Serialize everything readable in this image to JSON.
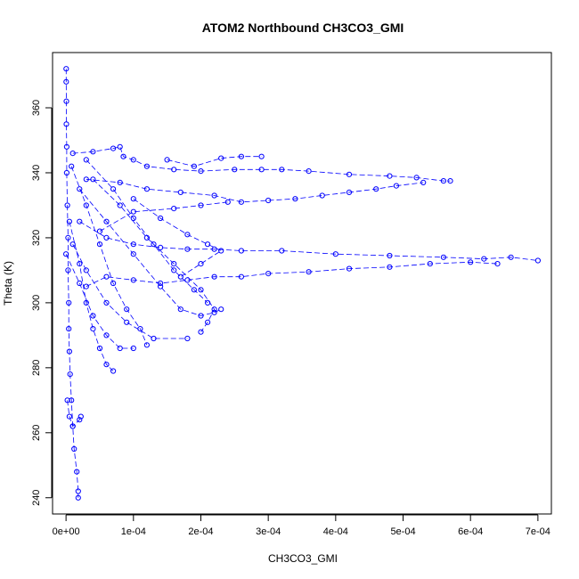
{
  "chart_data": {
    "type": "scatter",
    "title": "ATOM2 Northbound CH3CO3_GMI",
    "xlabel": "CH3CO3_GMI",
    "ylabel": "Theta (K)",
    "xlim": [
      -2e-05,
      0.00072
    ],
    "ylim": [
      235,
      377
    ],
    "xticks": [
      0,
      0.0001,
      0.0002,
      0.0003,
      0.0004,
      0.0005,
      0.0006,
      0.0007
    ],
    "xtick_labels": [
      "0e+00",
      "1e-04",
      "2e-04",
      "3e-04",
      "4e-04",
      "5e-04",
      "6e-04",
      "7e-04"
    ],
    "yticks": [
      240,
      260,
      280,
      300,
      320,
      340,
      360
    ],
    "ytick_labels": [
      "240",
      "260",
      "280",
      "300",
      "320",
      "340",
      "360"
    ],
    "grid": false,
    "marker": "open-circle",
    "connected": true,
    "color": "#0000ff",
    "series": [
      {
        "points": [
          [
            2e-07,
            372
          ],
          [
            2e-07,
            368
          ],
          [
            5e-07,
            362
          ],
          [
            5e-07,
            355
          ],
          [
            1e-06,
            348
          ],
          [
            1e-06,
            340
          ],
          [
            2e-06,
            330
          ],
          [
            3e-06,
            320
          ],
          [
            3e-06,
            310
          ],
          [
            4e-06,
            300
          ],
          [
            4e-06,
            292
          ],
          [
            5e-06,
            285
          ],
          [
            6e-06,
            278
          ],
          [
            8e-06,
            270
          ],
          [
            1e-05,
            262
          ],
          [
            1.2e-05,
            255
          ],
          [
            1.6e-05,
            248
          ],
          [
            1.8e-05,
            242
          ],
          [
            1.8e-05,
            240
          ]
        ]
      },
      {
        "points": [
          [
            1e-05,
            346
          ],
          [
            4e-05,
            346.5
          ],
          [
            7e-05,
            347.5
          ],
          [
            8e-05,
            348
          ],
          [
            8.5e-05,
            345
          ],
          [
            0.0001,
            344
          ],
          [
            0.00012,
            342
          ],
          [
            0.00016,
            341
          ],
          [
            0.0002,
            340.5
          ],
          [
            0.00025,
            341
          ],
          [
            0.00029,
            341
          ],
          [
            0.00032,
            341
          ],
          [
            0.00036,
            340.5
          ],
          [
            0.00042,
            339.5
          ],
          [
            0.00048,
            339
          ],
          [
            0.00052,
            338.5
          ],
          [
            0.00056,
            337.5
          ],
          [
            0.00057,
            337.5
          ]
        ]
      },
      {
        "points": [
          [
            3e-05,
            338
          ],
          [
            8e-05,
            337
          ],
          [
            0.00012,
            335
          ],
          [
            0.00017,
            334
          ],
          [
            0.00022,
            333
          ],
          [
            0.00026,
            331
          ],
          [
            0.0003,
            331.5
          ],
          [
            0.00034,
            332
          ],
          [
            0.00038,
            333
          ],
          [
            0.00042,
            334
          ],
          [
            0.00046,
            335
          ],
          [
            0.00049,
            336
          ],
          [
            0.00053,
            337
          ]
        ]
      },
      {
        "points": [
          [
            2e-05,
            325
          ],
          [
            6e-05,
            320
          ],
          [
            0.0001,
            318
          ],
          [
            0.00014,
            317
          ],
          [
            0.00018,
            316.5
          ],
          [
            0.00022,
            316.5
          ],
          [
            0.00026,
            316
          ],
          [
            0.00032,
            316
          ],
          [
            0.0004,
            315
          ],
          [
            0.00048,
            314.5
          ],
          [
            0.00056,
            314
          ],
          [
            0.00062,
            313.5
          ],
          [
            0.00066,
            314
          ],
          [
            0.0007,
            313
          ]
        ]
      },
      {
        "points": [
          [
            3e-05,
            305
          ],
          [
            6e-05,
            308
          ],
          [
            0.0001,
            307
          ],
          [
            0.00014,
            306
          ],
          [
            0.00018,
            307
          ],
          [
            0.00022,
            308
          ],
          [
            0.00026,
            308
          ],
          [
            0.0003,
            309
          ],
          [
            0.00036,
            309.5
          ],
          [
            0.00042,
            310.5
          ],
          [
            0.00048,
            311
          ],
          [
            0.00054,
            312
          ],
          [
            0.0006,
            312.5
          ],
          [
            0.00064,
            312
          ]
        ]
      },
      {
        "points": [
          [
            8e-06,
            342
          ],
          [
            3e-05,
            330
          ],
          [
            5e-05,
            318
          ],
          [
            7e-05,
            306
          ],
          [
            9e-05,
            298
          ],
          [
            0.00011,
            292
          ],
          [
            0.00012,
            287
          ]
        ]
      },
      {
        "points": [
          [
            5e-06,
            325
          ],
          [
            2e-05,
            312
          ],
          [
            3e-05,
            300
          ],
          [
            4e-05,
            292
          ],
          [
            5e-05,
            286
          ],
          [
            6e-05,
            281
          ],
          [
            7e-05,
            279
          ]
        ]
      },
      {
        "points": [
          [
            2e-05,
            335
          ],
          [
            6e-05,
            325
          ],
          [
            0.0001,
            315
          ],
          [
            0.00014,
            305
          ],
          [
            0.00017,
            298
          ],
          [
            0.0002,
            296
          ],
          [
            0.00022,
            297
          ],
          [
            0.00023,
            298
          ]
        ]
      },
      {
        "points": [
          [
            4e-05,
            338
          ],
          [
            8e-05,
            330
          ],
          [
            0.00012,
            320
          ],
          [
            0.00016,
            312
          ],
          [
            0.0002,
            304
          ],
          [
            0.00022,
            298
          ],
          [
            0.00021,
            294
          ],
          [
            0.0002,
            291
          ]
        ]
      },
      {
        "points": [
          [
            1e-05,
            318
          ],
          [
            3e-05,
            310
          ],
          [
            6e-05,
            300
          ],
          [
            9e-05,
            294
          ],
          [
            0.00013,
            289
          ],
          [
            0.00018,
            289
          ]
        ]
      },
      {
        "points": [
          [
            3e-05,
            344
          ],
          [
            7e-05,
            335
          ],
          [
            0.0001,
            326
          ],
          [
            0.00013,
            318
          ],
          [
            0.00016,
            310
          ],
          [
            0.00019,
            304
          ],
          [
            0.00021,
            300
          ]
        ]
      },
      {
        "points": [
          [
            2e-06,
            270
          ],
          [
            5e-06,
            265
          ],
          [
            1e-05,
            262
          ],
          [
            2e-05,
            264
          ],
          [
            2.2e-05,
            265
          ]
        ]
      },
      {
        "points": [
          [
            0.00015,
            344
          ],
          [
            0.00019,
            342
          ],
          [
            0.00023,
            344.5
          ],
          [
            0.00026,
            345
          ],
          [
            0.00029,
            345
          ]
        ]
      },
      {
        "points": [
          [
            5e-05,
            322
          ],
          [
            0.0001,
            328
          ],
          [
            0.00016,
            329
          ],
          [
            0.0002,
            330
          ],
          [
            0.00024,
            331
          ]
        ]
      },
      {
        "points": [
          [
            0.0,
            315
          ],
          [
            2e-05,
            306
          ],
          [
            4e-05,
            296
          ],
          [
            6e-05,
            290
          ],
          [
            8e-05,
            286
          ],
          [
            0.0001,
            286
          ]
        ]
      },
      {
        "points": [
          [
            0.0001,
            332
          ],
          [
            0.00014,
            326
          ],
          [
            0.00018,
            321
          ],
          [
            0.00021,
            318
          ],
          [
            0.00023,
            316
          ],
          [
            0.0002,
            312
          ],
          [
            0.00017,
            308
          ]
        ]
      }
    ]
  }
}
